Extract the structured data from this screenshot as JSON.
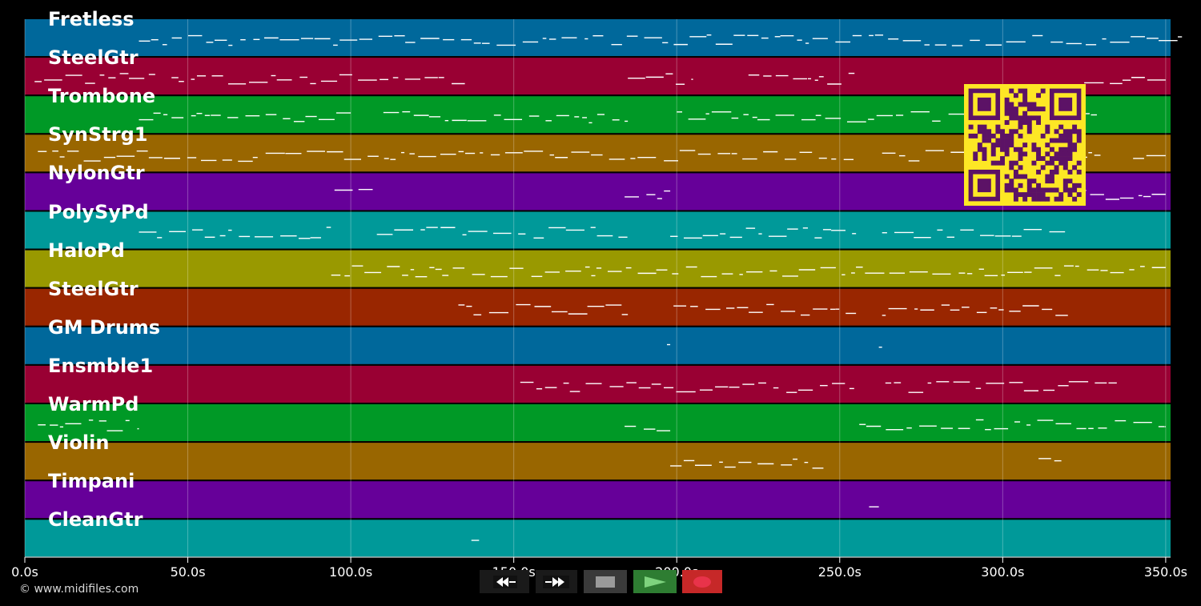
{
  "tracks": [
    {
      "name": "Fretless",
      "color": "#00689b"
    },
    {
      "name": "SteelGtr",
      "color": "#990033"
    },
    {
      "name": "Trombone",
      "color": "#009926"
    },
    {
      "name": "SynStrg1",
      "color": "#996600"
    },
    {
      "name": "NylonGtr",
      "color": "#660099"
    },
    {
      "name": "PolySyPd",
      "color": "#009999"
    },
    {
      "name": "HaloPd",
      "color": "#999900"
    },
    {
      "name": "SteelGtr",
      "color": "#992600"
    },
    {
      "name": "GM Drums",
      "color": "#00689b"
    },
    {
      "name": "Ensmble1",
      "color": "#990033"
    },
    {
      "name": "WarmPd",
      "color": "#009926"
    },
    {
      "name": "Violin",
      "color": "#996600"
    },
    {
      "name": "Timpani",
      "color": "#660099"
    },
    {
      "name": "CleanGtr",
      "color": "#009999"
    }
  ],
  "timeline": {
    "min_seconds": 0,
    "max_seconds": 351.5,
    "ticks": [
      {
        "value": 0,
        "label": "0.0s"
      },
      {
        "value": 50,
        "label": "50.0s"
      },
      {
        "value": 100,
        "label": "100.0s"
      },
      {
        "value": 150,
        "label": "150.0s"
      },
      {
        "value": 200,
        "label": "200.0s"
      },
      {
        "value": 250,
        "label": "250.0s"
      },
      {
        "value": 300,
        "label": "300.0s"
      },
      {
        "value": 350,
        "label": "350.0s"
      }
    ]
  },
  "footer": {
    "copyright": "© www.midifiles.com"
  },
  "controls": {
    "rewind_icon": "rewind-icon",
    "fast_forward_icon": "fast-forward-icon",
    "stop_icon": "stop-icon",
    "play_icon": "play-icon",
    "record_icon": "record-icon",
    "play_color": "#2e7d32",
    "record_color": "#c62828"
  },
  "qr_code": {
    "fg": "#5c1266",
    "bg": "#fde725"
  },
  "colors": {
    "background": "#000000",
    "notes": "#ffffff"
  }
}
